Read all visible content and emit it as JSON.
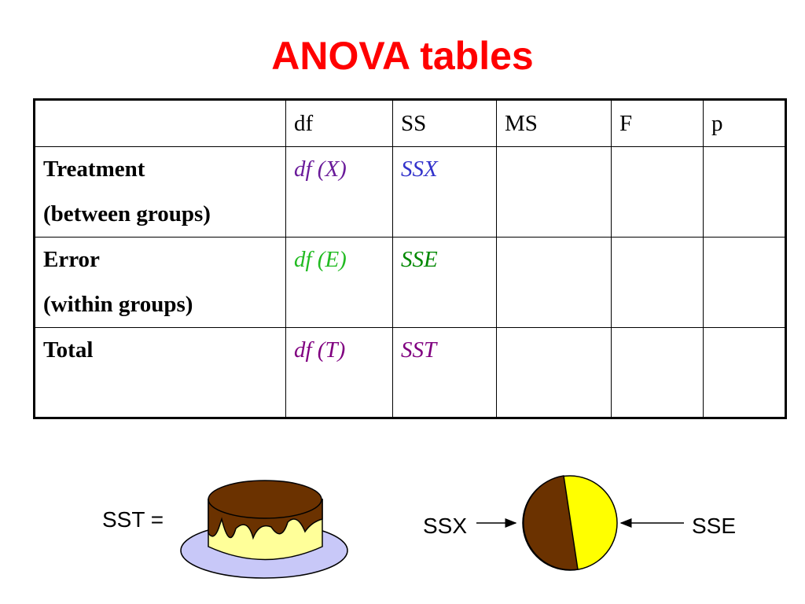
{
  "title": "ANOVA tables",
  "table": {
    "header": [
      "df",
      "SS",
      "MS",
      "F",
      "p"
    ],
    "rows": [
      {
        "label": [
          "Treatment",
          "(between groups)"
        ],
        "df": "df (X)",
        "ss": "SSX"
      },
      {
        "label": [
          "Error",
          "(within groups)"
        ],
        "df": "df (E)",
        "ss": "SSE"
      },
      {
        "label": [
          "Total"
        ],
        "df": "df (T)",
        "ss": "SST"
      }
    ]
  },
  "illustration": {
    "cake_label": "SST =",
    "left_label": "SSX",
    "right_label": "SSE"
  }
}
